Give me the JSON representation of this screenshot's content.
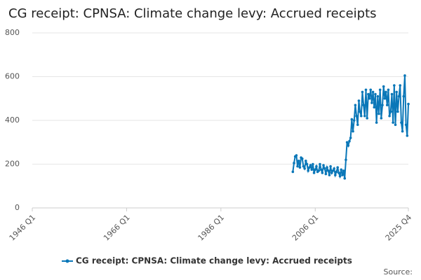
{
  "chart_data": {
    "type": "line",
    "title": "CG receipt: CPNSA: Climate change levy: Accrued receipts",
    "x": [
      "2001 Q2",
      "2001 Q3",
      "2001 Q4",
      "2002 Q1",
      "2002 Q2",
      "2002 Q3",
      "2002 Q4",
      "2003 Q1",
      "2003 Q2",
      "2003 Q3",
      "2003 Q4",
      "2004 Q1",
      "2004 Q2",
      "2004 Q3",
      "2004 Q4",
      "2005 Q1",
      "2005 Q2",
      "2005 Q3",
      "2005 Q4",
      "2006 Q1",
      "2006 Q2",
      "2006 Q3",
      "2006 Q4",
      "2007 Q1",
      "2007 Q2",
      "2007 Q3",
      "2007 Q4",
      "2008 Q1",
      "2008 Q2",
      "2008 Q3",
      "2008 Q4",
      "2009 Q1",
      "2009 Q2",
      "2009 Q3",
      "2009 Q4",
      "2010 Q1",
      "2010 Q2",
      "2010 Q3",
      "2010 Q4",
      "2011 Q1",
      "2011 Q2",
      "2011 Q3",
      "2011 Q4",
      "2012 Q1",
      "2012 Q2",
      "2012 Q3",
      "2012 Q4",
      "2013 Q1",
      "2013 Q2",
      "2013 Q3",
      "2013 Q4",
      "2014 Q1",
      "2014 Q2",
      "2014 Q3",
      "2014 Q4",
      "2015 Q1",
      "2015 Q2",
      "2015 Q3",
      "2015 Q4",
      "2016 Q1",
      "2016 Q2",
      "2016 Q3",
      "2016 Q4",
      "2017 Q1",
      "2017 Q2",
      "2017 Q3",
      "2017 Q4",
      "2018 Q1",
      "2018 Q2",
      "2018 Q3",
      "2018 Q4",
      "2019 Q1",
      "2019 Q2",
      "2019 Q3",
      "2019 Q4",
      "2020 Q1",
      "2020 Q2",
      "2020 Q3",
      "2020 Q4",
      "2021 Q1",
      "2021 Q2",
      "2021 Q3",
      "2021 Q4",
      "2022 Q1",
      "2022 Q2",
      "2022 Q3",
      "2022 Q4",
      "2023 Q1",
      "2023 Q2",
      "2023 Q3",
      "2023 Q4",
      "2024 Q1",
      "2024 Q2",
      "2024 Q3",
      "2024 Q4",
      "2025 Q1",
      "2025 Q2",
      "2025 Q3",
      "2025 Q4"
    ],
    "series": [
      {
        "name": "CG receipt: CPNSA: Climate change levy: Accrued receipts",
        "color": "#0a77b8",
        "values": [
          165,
          205,
          235,
          240,
          190,
          215,
          185,
          230,
          225,
          190,
          180,
          215,
          200,
          170,
          185,
          195,
          175,
          200,
          160,
          175,
          190,
          165,
          170,
          200,
          175,
          160,
          195,
          180,
          155,
          185,
          170,
          150,
          190,
          160,
          170,
          180,
          150,
          165,
          185,
          160,
          145,
          175,
          150,
          170,
          135,
          220,
          300,
          285,
          305,
          320,
          405,
          350,
          400,
          470,
          420,
          380,
          490,
          440,
          420,
          530,
          470,
          420,
          540,
          410,
          520,
          500,
          540,
          480,
          530,
          460,
          520,
          390,
          510,
          430,
          540,
          410,
          470,
          555,
          500,
          530,
          470,
          540,
          420,
          440,
          520,
          390,
          560,
          380,
          530,
          440,
          510,
          560,
          390,
          350,
          510,
          605,
          380,
          330,
          475
        ]
      }
    ],
    "xlim": [
      "1946 Q1",
      "2025 Q4"
    ],
    "xticks": [
      "1946 Q1",
      "1966 Q1",
      "1986 Q1",
      "2006 Q1",
      "2025 Q4"
    ],
    "ylim": [
      0,
      800
    ],
    "yticks": [
      0,
      200,
      400,
      600,
      800
    ],
    "grid": true,
    "legend": "bottom",
    "source": "Source:"
  }
}
